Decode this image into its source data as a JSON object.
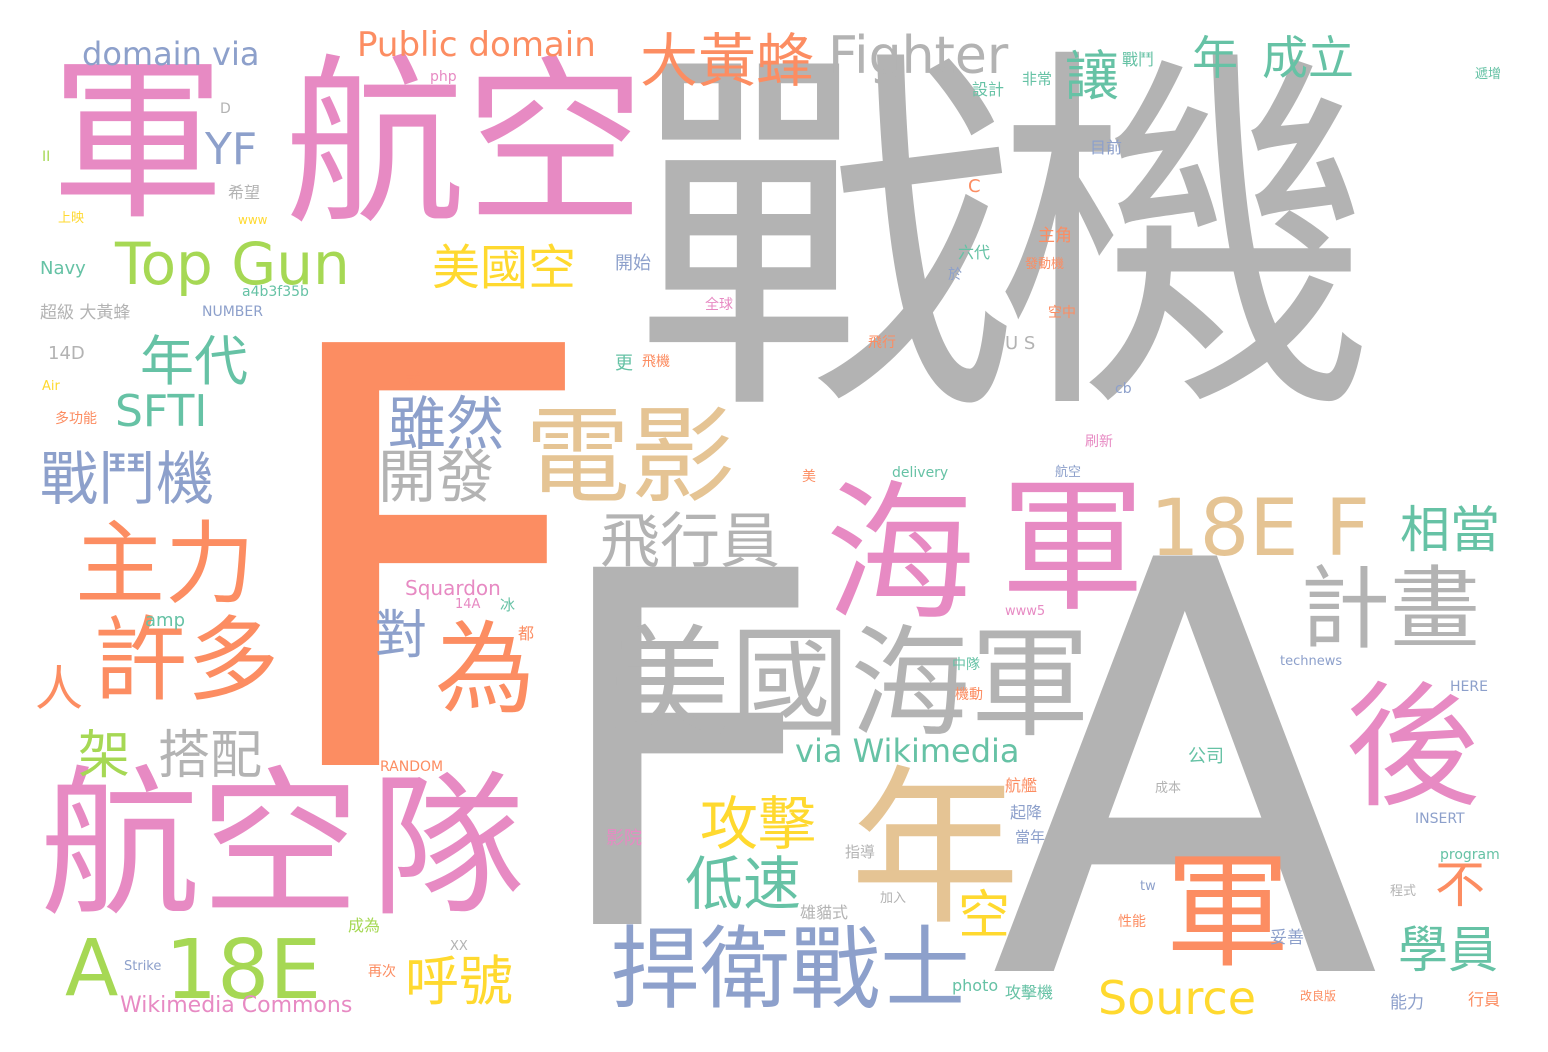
{
  "colors": {
    "gray": "#b3b3b3",
    "orange": "#fc8d62",
    "pink": "#e78ac3",
    "tan": "#e5c494",
    "blue": "#8da0cb",
    "green": "#66c2a5",
    "yellow": "#ffd92f",
    "lime": "#a6d854"
  },
  "words": [
    {
      "text": "戰機",
      "color": "gray"
    },
    {
      "text": "A",
      "color": "gray"
    },
    {
      "text": "F",
      "color": "gray"
    },
    {
      "text": "F",
      "color": "orange"
    },
    {
      "text": "軍",
      "color": "pink"
    },
    {
      "text": "航空",
      "color": "pink"
    },
    {
      "text": "航空",
      "color": "pink"
    },
    {
      "text": "隊",
      "color": "pink"
    },
    {
      "text": "海",
      "color": "pink"
    },
    {
      "text": "軍",
      "color": "pink"
    },
    {
      "text": "後",
      "color": "pink"
    },
    {
      "text": "美國海軍",
      "color": "gray"
    },
    {
      "text": "捍衛戰士",
      "color": "blue"
    },
    {
      "text": "年",
      "color": "tan"
    },
    {
      "text": "軍",
      "color": "orange"
    },
    {
      "text": "電影",
      "color": "tan"
    },
    {
      "text": "18E",
      "color": "tan"
    },
    {
      "text": "F",
      "color": "tan"
    },
    {
      "text": "主力",
      "color": "orange"
    },
    {
      "text": "許多",
      "color": "orange"
    },
    {
      "text": "為",
      "color": "orange"
    },
    {
      "text": "計畫",
      "color": "gray"
    },
    {
      "text": "Top Gun",
      "color": "lime"
    },
    {
      "text": "A",
      "color": "lime"
    },
    {
      "text": "18E",
      "color": "lime"
    },
    {
      "text": "大黃蜂",
      "color": "orange"
    },
    {
      "text": "Fighter",
      "color": "gray"
    },
    {
      "text": "年",
      "color": "green"
    },
    {
      "text": "成立",
      "color": "green"
    },
    {
      "text": "Public domain",
      "color": "orange"
    },
    {
      "text": "domain via",
      "color": "blue"
    },
    {
      "text": "YF",
      "color": "blue"
    },
    {
      "text": "年代",
      "color": "green"
    },
    {
      "text": "SFTI",
      "color": "green"
    },
    {
      "text": "戰鬥機",
      "color": "blue"
    },
    {
      "text": "美國空",
      "color": "yellow"
    },
    {
      "text": "雖然",
      "color": "blue"
    },
    {
      "text": "開發",
      "color": "gray"
    },
    {
      "text": "飛行員",
      "color": "gray"
    },
    {
      "text": "相當",
      "color": "green"
    },
    {
      "text": "攻擊",
      "color": "yellow"
    },
    {
      "text": "低速",
      "color": "green"
    },
    {
      "text": "空",
      "color": "yellow"
    },
    {
      "text": "不",
      "color": "orange"
    },
    {
      "text": "學員",
      "color": "green"
    },
    {
      "text": "Source",
      "color": "yellow"
    },
    {
      "text": "呼號",
      "color": "yellow"
    },
    {
      "text": "via Wikimedia",
      "color": "green"
    },
    {
      "text": "搭配",
      "color": "gray"
    },
    {
      "text": "架",
      "color": "lime"
    },
    {
      "text": "人",
      "color": "orange"
    },
    {
      "text": "對",
      "color": "blue"
    },
    {
      "text": "讓",
      "color": "green"
    },
    {
      "text": "Wikimedia Commons",
      "color": "pink"
    },
    {
      "text": "Squardon",
      "color": "pink"
    },
    {
      "text": "Navy",
      "color": "green"
    },
    {
      "text": "14D",
      "color": "gray"
    },
    {
      "text": "超級 大黃蜂",
      "color": "gray"
    },
    {
      "text": "NUMBER",
      "color": "blue"
    },
    {
      "text": "a4b3f35b",
      "color": "green"
    },
    {
      "text": "希望",
      "color": "gray"
    },
    {
      "text": "上映",
      "color": "yellow"
    },
    {
      "text": "多功能",
      "color": "orange"
    },
    {
      "text": "Air",
      "color": "yellow"
    },
    {
      "text": "U S",
      "color": "gray"
    },
    {
      "text": "開始",
      "color": "blue"
    },
    {
      "text": "主角",
      "color": "orange"
    },
    {
      "text": "六代",
      "color": "green"
    },
    {
      "text": "php",
      "color": "pink"
    },
    {
      "text": "目前",
      "color": "blue"
    },
    {
      "text": "設計",
      "color": "green"
    },
    {
      "text": "戰鬥",
      "color": "green"
    },
    {
      "text": "非常",
      "color": "green"
    },
    {
      "text": "影院",
      "color": "pink"
    },
    {
      "text": "起降",
      "color": "blue"
    },
    {
      "text": "當年",
      "color": "blue"
    },
    {
      "text": "航艦",
      "color": "orange"
    },
    {
      "text": "公司",
      "color": "green"
    },
    {
      "text": "成為",
      "color": "lime"
    },
    {
      "text": "再次",
      "color": "orange"
    },
    {
      "text": "攻擊機",
      "color": "green"
    },
    {
      "text": "photo",
      "color": "green"
    },
    {
      "text": "妥善",
      "color": "blue"
    },
    {
      "text": "能力",
      "color": "blue"
    },
    {
      "text": "行員",
      "color": "orange"
    },
    {
      "text": "改良版",
      "color": "orange"
    },
    {
      "text": "INSERT",
      "color": "blue"
    },
    {
      "text": "program",
      "color": "green"
    },
    {
      "text": "technews",
      "color": "blue"
    },
    {
      "text": "HERE",
      "color": "blue"
    },
    {
      "text": "RANDOM",
      "color": "orange"
    },
    {
      "text": "Strike",
      "color": "blue"
    },
    {
      "text": "XX",
      "color": "gray"
    },
    {
      "text": "delivery",
      "color": "green"
    },
    {
      "text": "C",
      "color": "orange"
    },
    {
      "text": "D",
      "color": "gray"
    },
    {
      "text": "II",
      "color": "lime"
    },
    {
      "text": "14A",
      "color": "pink"
    },
    {
      "text": "都",
      "color": "orange"
    },
    {
      "text": "飛機",
      "color": "orange"
    },
    {
      "text": "更",
      "color": "green"
    },
    {
      "text": "全球",
      "color": "pink"
    },
    {
      "text": "中隊",
      "color": "green"
    },
    {
      "text": "機動",
      "color": "orange"
    },
    {
      "text": "雄貓式",
      "color": "gray"
    },
    {
      "text": "指導",
      "color": "gray"
    },
    {
      "text": "加入",
      "color": "gray"
    },
    {
      "text": "成本",
      "color": "gray"
    },
    {
      "text": "程式",
      "color": "gray"
    },
    {
      "text": "性能",
      "color": "orange"
    },
    {
      "text": "空中",
      "color": "orange"
    },
    {
      "text": "飛行",
      "color": "orange"
    },
    {
      "text": "式",
      "color": "orange"
    },
    {
      "text": "美",
      "color": "orange"
    },
    {
      "text": "刷新",
      "color": "pink"
    },
    {
      "text": "航空",
      "color": "blue"
    },
    {
      "text": "冰",
      "color": "green"
    },
    {
      "text": "cb",
      "color": "blue"
    },
    {
      "text": "tw",
      "color": "blue"
    },
    {
      "text": "www5",
      "color": "pink"
    },
    {
      "text": "www",
      "color": "yellow"
    },
    {
      "text": "於",
      "color": "blue"
    },
    {
      "text": "amp",
      "color": "green"
    },
    {
      "text": "發動機",
      "color": "orange"
    },
    {
      "text": "遞增",
      "color": "green"
    },
    {
      "text": "Commons",
      "color": "pink"
    }
  ]
}
